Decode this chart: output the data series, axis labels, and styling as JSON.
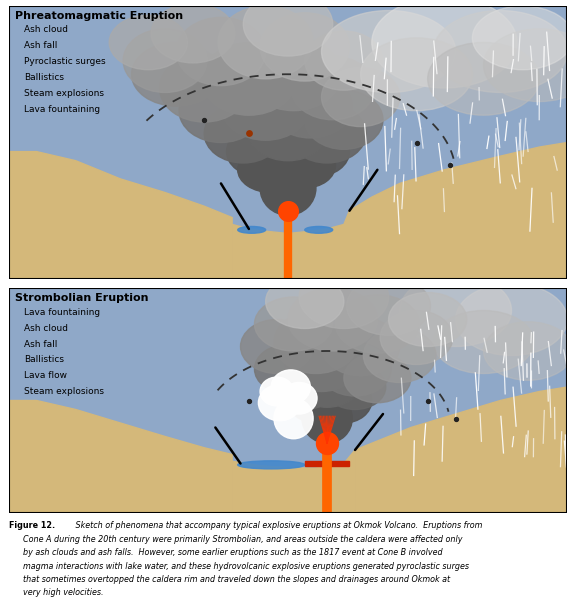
{
  "bg_color": "#8fa8c8",
  "ground_color": "#d4b87a",
  "panel1_title": "Phreatomagmatic Eruption",
  "panel1_items": [
    "Ash cloud",
    "Ash fall",
    "Pyroclastic surges",
    "Ballistics",
    "Steam explosions",
    "Lava fountaining"
  ],
  "panel2_title": "Strombolian Eruption",
  "panel2_items": [
    "Lava fountaining",
    "Ash cloud",
    "Ash fall",
    "Ballistics",
    "Lava flow",
    "Steam explosions"
  ],
  "caption_bold": "Figure 12.",
  "caption_italic": " Sketch of phenomena that accompany typical explosive eruptions at Okmok Volcano. Eruptions from Cone A during the 20th century were primarily Strombolian, and areas outside the caldera were affected only by ash clouds and ash falls.  However, some earlier eruptions such as the 1817 event at Cone B involved magma interactions with lake water, and these hydrovolcanic explosive eruptions generated pyroclastic surges that sometimes overtopped the caldera rim and traveled down the slopes and drainages around Okmok at very high velocities.",
  "lava_color": "#ff6600",
  "ash_dark": "#777777",
  "ash_mid": "#999999",
  "ash_light": "#bbbbbb",
  "ash_lighter": "#cccccc",
  "water_color": "#4488cc",
  "dashed_color": "#333333",
  "frame_color": "#000000",
  "white": "#ffffff",
  "red_lava": "#cc2200"
}
